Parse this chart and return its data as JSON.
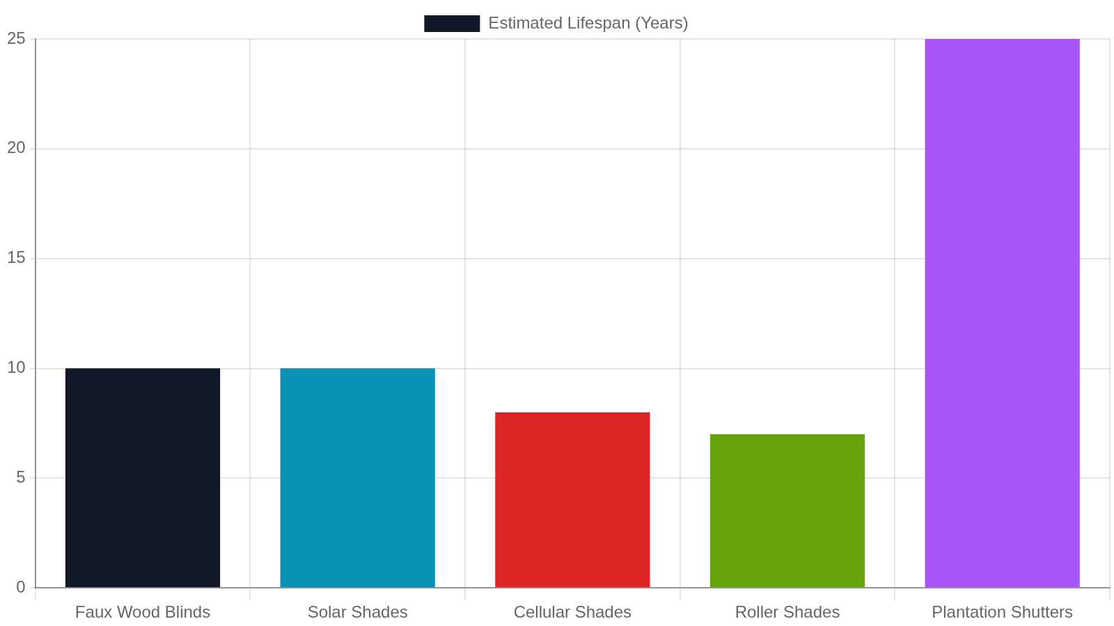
{
  "chart_data": {
    "type": "bar",
    "categories": [
      "Faux Wood Blinds",
      "Solar Shades",
      "Cellular Shades",
      "Roller Shades",
      "Plantation Shutters"
    ],
    "series": [
      {
        "name": "Estimated Lifespan (Years)",
        "colors": [
          "#111827",
          "#0891b2",
          "#dc2626",
          "#65a30d",
          "#a855f7"
        ],
        "values": [
          10,
          10,
          8,
          7,
          25
        ]
      }
    ],
    "ylim": [
      0,
      25
    ],
    "yticks": [
      0,
      5,
      10,
      15,
      20,
      25
    ],
    "grid": true,
    "legend": "top"
  }
}
